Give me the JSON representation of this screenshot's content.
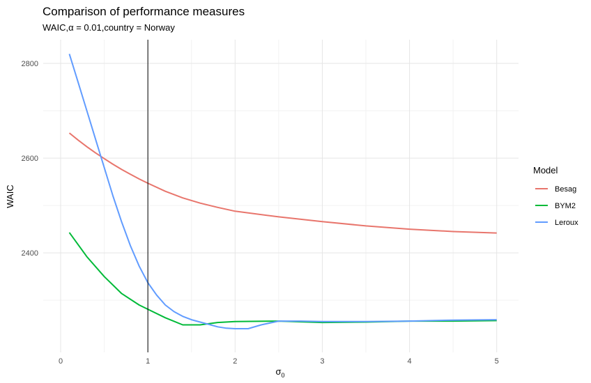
{
  "chart_data": {
    "type": "line",
    "title": "Comparison of performance measures",
    "subtitle": "WAIC,α = 0.01,country = Norway",
    "xlabel": "σ",
    "xlabel_sub": "0",
    "ylabel": "WAIC",
    "xlim": [
      -0.2,
      5.25
    ],
    "ylim": [
      2190,
      2850
    ],
    "x_ticks": [
      "0",
      "1",
      "2",
      "3",
      "4",
      "5"
    ],
    "y_ticks": [
      "2400",
      "2600",
      "2800"
    ],
    "vline_x": 1,
    "grid": true,
    "legend": {
      "title": "Model",
      "position": "right"
    },
    "series": [
      {
        "name": "Besag",
        "color": "#E8756C",
        "x": [
          0.1,
          0.2,
          0.3,
          0.4,
          0.5,
          0.6,
          0.7,
          0.8,
          0.9,
          1.0,
          1.2,
          1.4,
          1.6,
          1.8,
          2.0,
          2.5,
          3.0,
          3.5,
          4.0,
          4.5,
          5.0
        ],
        "y": [
          2653,
          2638,
          2624,
          2611,
          2599,
          2587,
          2576,
          2566,
          2556,
          2547,
          2530,
          2516,
          2505,
          2496,
          2488,
          2476,
          2466,
          2457,
          2450,
          2445,
          2442
        ]
      },
      {
        "name": "BYM2",
        "color": "#00BA38",
        "x": [
          0.1,
          0.3,
          0.5,
          0.7,
          0.9,
          1.0,
          1.2,
          1.4,
          1.6,
          1.8,
          2.0,
          2.5,
          3.0,
          3.5,
          4.0,
          4.5,
          5.0
        ],
        "y": [
          2443,
          2392,
          2350,
          2314,
          2290,
          2281,
          2263,
          2248,
          2248,
          2253,
          2255,
          2256,
          2253,
          2254,
          2256,
          2256,
          2257
        ]
      },
      {
        "name": "Leroux",
        "color": "#619CFF",
        "x": [
          0.1,
          0.2,
          0.3,
          0.4,
          0.5,
          0.6,
          0.7,
          0.8,
          0.9,
          1.0,
          1.1,
          1.2,
          1.3,
          1.4,
          1.5,
          1.6,
          1.7,
          1.8,
          1.9,
          2.0,
          2.15,
          2.3,
          2.5,
          2.75,
          3.0,
          3.5,
          4.0,
          4.5,
          5.0
        ],
        "y": [
          2820,
          2760,
          2700,
          2640,
          2580,
          2520,
          2465,
          2415,
          2372,
          2337,
          2311,
          2290,
          2276,
          2266,
          2259,
          2254,
          2249,
          2244,
          2241,
          2240,
          2240,
          2248,
          2256,
          2256,
          2255,
          2255,
          2256,
          2258,
          2259
        ]
      }
    ]
  }
}
